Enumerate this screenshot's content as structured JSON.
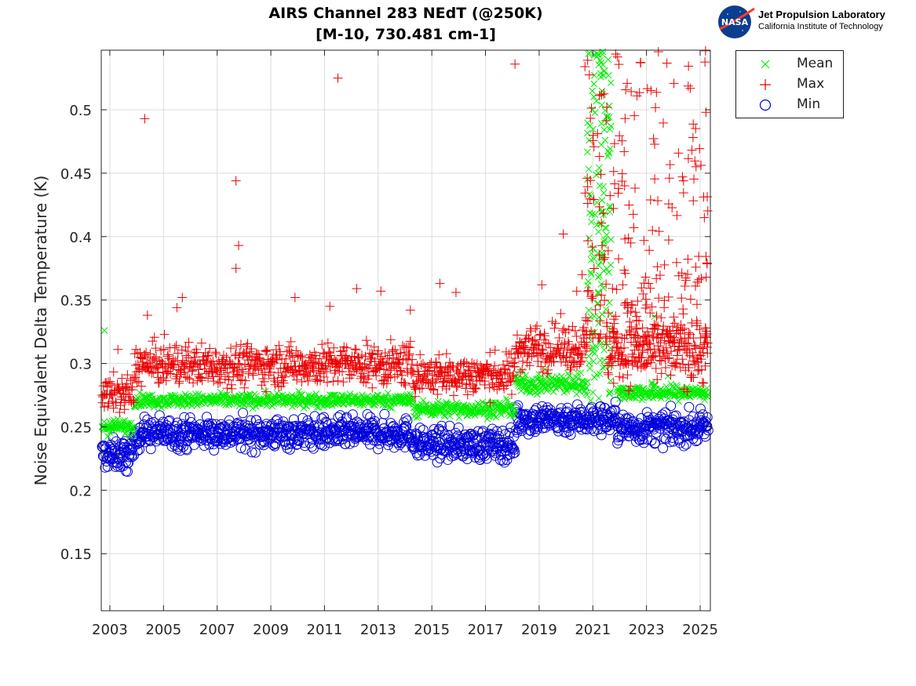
{
  "header": {
    "title_line1": "AIRS Channel 283 NEdT (@250K)",
    "title_line2": "[M-10, 730.481 cm-1]"
  },
  "logo": {
    "emblem_text": "NASA",
    "line1": "Jet Propulsion Laboratory",
    "line2": "California Institute of Technology"
  },
  "legend": [
    {
      "name": "Mean",
      "marker": "x",
      "color": "#00ee00"
    },
    {
      "name": "Max",
      "marker": "+",
      "color": "#ee0000"
    },
    {
      "name": "Min",
      "marker": "o",
      "color": "#0000dd"
    }
  ],
  "chart_data": {
    "type": "scatter",
    "title": "AIRS Channel 283 NEdT (@250K) [M-10, 730.481 cm-1]",
    "xlabel": "",
    "ylabel": "Noise Equivalent Delta Temperature (K)",
    "xlim": [
      2002.68,
      2025.38
    ],
    "ylim": [
      0.105,
      0.547
    ],
    "xticks": [
      2003,
      2005,
      2007,
      2009,
      2011,
      2013,
      2015,
      2017,
      2019,
      2021,
      2023,
      2025
    ],
    "xtick_labels": [
      "2003",
      "2005",
      "2007",
      "2009",
      "2011",
      "2013",
      "2015",
      "2017",
      "2019",
      "2021",
      "2023",
      "2025"
    ],
    "yticks": [
      0.15,
      0.2,
      0.25,
      0.3,
      0.35,
      0.4,
      0.45,
      0.5
    ],
    "ytick_labels": [
      "0.15",
      "0.2",
      "0.25",
      "0.3",
      "0.35",
      "0.4",
      "0.45",
      "0.5"
    ],
    "grid": true,
    "legend_position": "outside-top-right",
    "series": [
      {
        "name": "Mean",
        "marker": "x",
        "color": "#00ee00",
        "segments": [
          {
            "x0": 2002.7,
            "x1": 2003.9,
            "level": 0.25,
            "spread": 0.003
          },
          {
            "x0": 2003.9,
            "x1": 2014.3,
            "level": 0.271,
            "spread": 0.0025
          },
          {
            "x0": 2014.3,
            "x1": 2018.1,
            "level": 0.264,
            "spread": 0.003
          },
          {
            "x0": 2018.1,
            "x1": 2020.8,
            "level": 0.284,
            "spread": 0.004
          },
          {
            "x0": 2021.9,
            "x1": 2025.3,
            "level": 0.277,
            "spread": 0.003
          }
        ],
        "spike": {
          "x0": 2020.8,
          "x1": 2021.9,
          "min": 0.27,
          "max": 0.547
        },
        "outliers": [
          [
            2002.8,
            0.326
          ],
          [
            2023.2,
            0.285
          ],
          [
            2023.8,
            0.29
          ],
          [
            2023.3,
            0.337
          ]
        ]
      },
      {
        "name": "Max",
        "marker": "+",
        "color": "#ee0000",
        "segments": [
          {
            "x0": 2002.7,
            "x1": 2003.9,
            "level": 0.276,
            "spread": 0.007
          },
          {
            "x0": 2003.9,
            "x1": 2014.3,
            "level": 0.299,
            "spread": 0.008
          },
          {
            "x0": 2014.3,
            "x1": 2018.1,
            "level": 0.291,
            "spread": 0.008
          },
          {
            "x0": 2018.1,
            "x1": 2020.8,
            "level": 0.313,
            "spread": 0.009
          },
          {
            "x0": 2021.5,
            "x1": 2025.3,
            "level": 0.308,
            "spread": 0.012
          }
        ],
        "outliers": [
          [
            2004.3,
            0.493
          ],
          [
            2007.7,
            0.444
          ],
          [
            2007.8,
            0.393
          ],
          [
            2007.7,
            0.375
          ],
          [
            2011.5,
            0.525
          ],
          [
            2018.1,
            0.536
          ],
          [
            2005.7,
            0.352
          ],
          [
            2009.9,
            0.352
          ],
          [
            2012.2,
            0.359
          ],
          [
            2013.1,
            0.357
          ],
          [
            2015.3,
            0.363
          ],
          [
            2015.9,
            0.356
          ],
          [
            2019.1,
            0.362
          ],
          [
            2019.9,
            0.402
          ],
          [
            2020.6,
            0.37
          ],
          [
            2020.4,
            0.357
          ],
          [
            2004.4,
            0.338
          ],
          [
            2005.5,
            0.344
          ],
          [
            2011.2,
            0.345
          ],
          [
            2014.2,
            0.342
          ],
          [
            2003.3,
            0.311
          ],
          [
            2013.2,
            0.284
          ],
          [
            2004.8,
            0.289
          ]
        ],
        "scatter_region": {
          "x0": 2020.7,
          "x1": 2025.3,
          "min": 0.32,
          "max": 0.547
        }
      },
      {
        "name": "Min",
        "marker": "o",
        "color": "#0000dd",
        "segments": [
          {
            "x0": 2002.7,
            "x1": 2003.9,
            "level": 0.228,
            "spread": 0.006
          },
          {
            "x0": 2003.9,
            "x1": 2014.3,
            "level": 0.245,
            "spread": 0.006
          },
          {
            "x0": 2014.3,
            "x1": 2018.1,
            "level": 0.236,
            "spread": 0.006
          },
          {
            "x0": 2018.1,
            "x1": 2020.8,
            "level": 0.256,
            "spread": 0.006
          },
          {
            "x0": 2020.8,
            "x1": 2021.9,
            "level": 0.256,
            "spread": 0.006
          },
          {
            "x0": 2021.9,
            "x1": 2025.3,
            "level": 0.249,
            "spread": 0.006
          }
        ],
        "outliers": [
          [
            2003.6,
            0.215
          ],
          [
            2016.8,
            0.224
          ],
          [
            2017.8,
            0.224
          ],
          [
            2004.1,
            0.232
          ]
        ]
      }
    ]
  }
}
